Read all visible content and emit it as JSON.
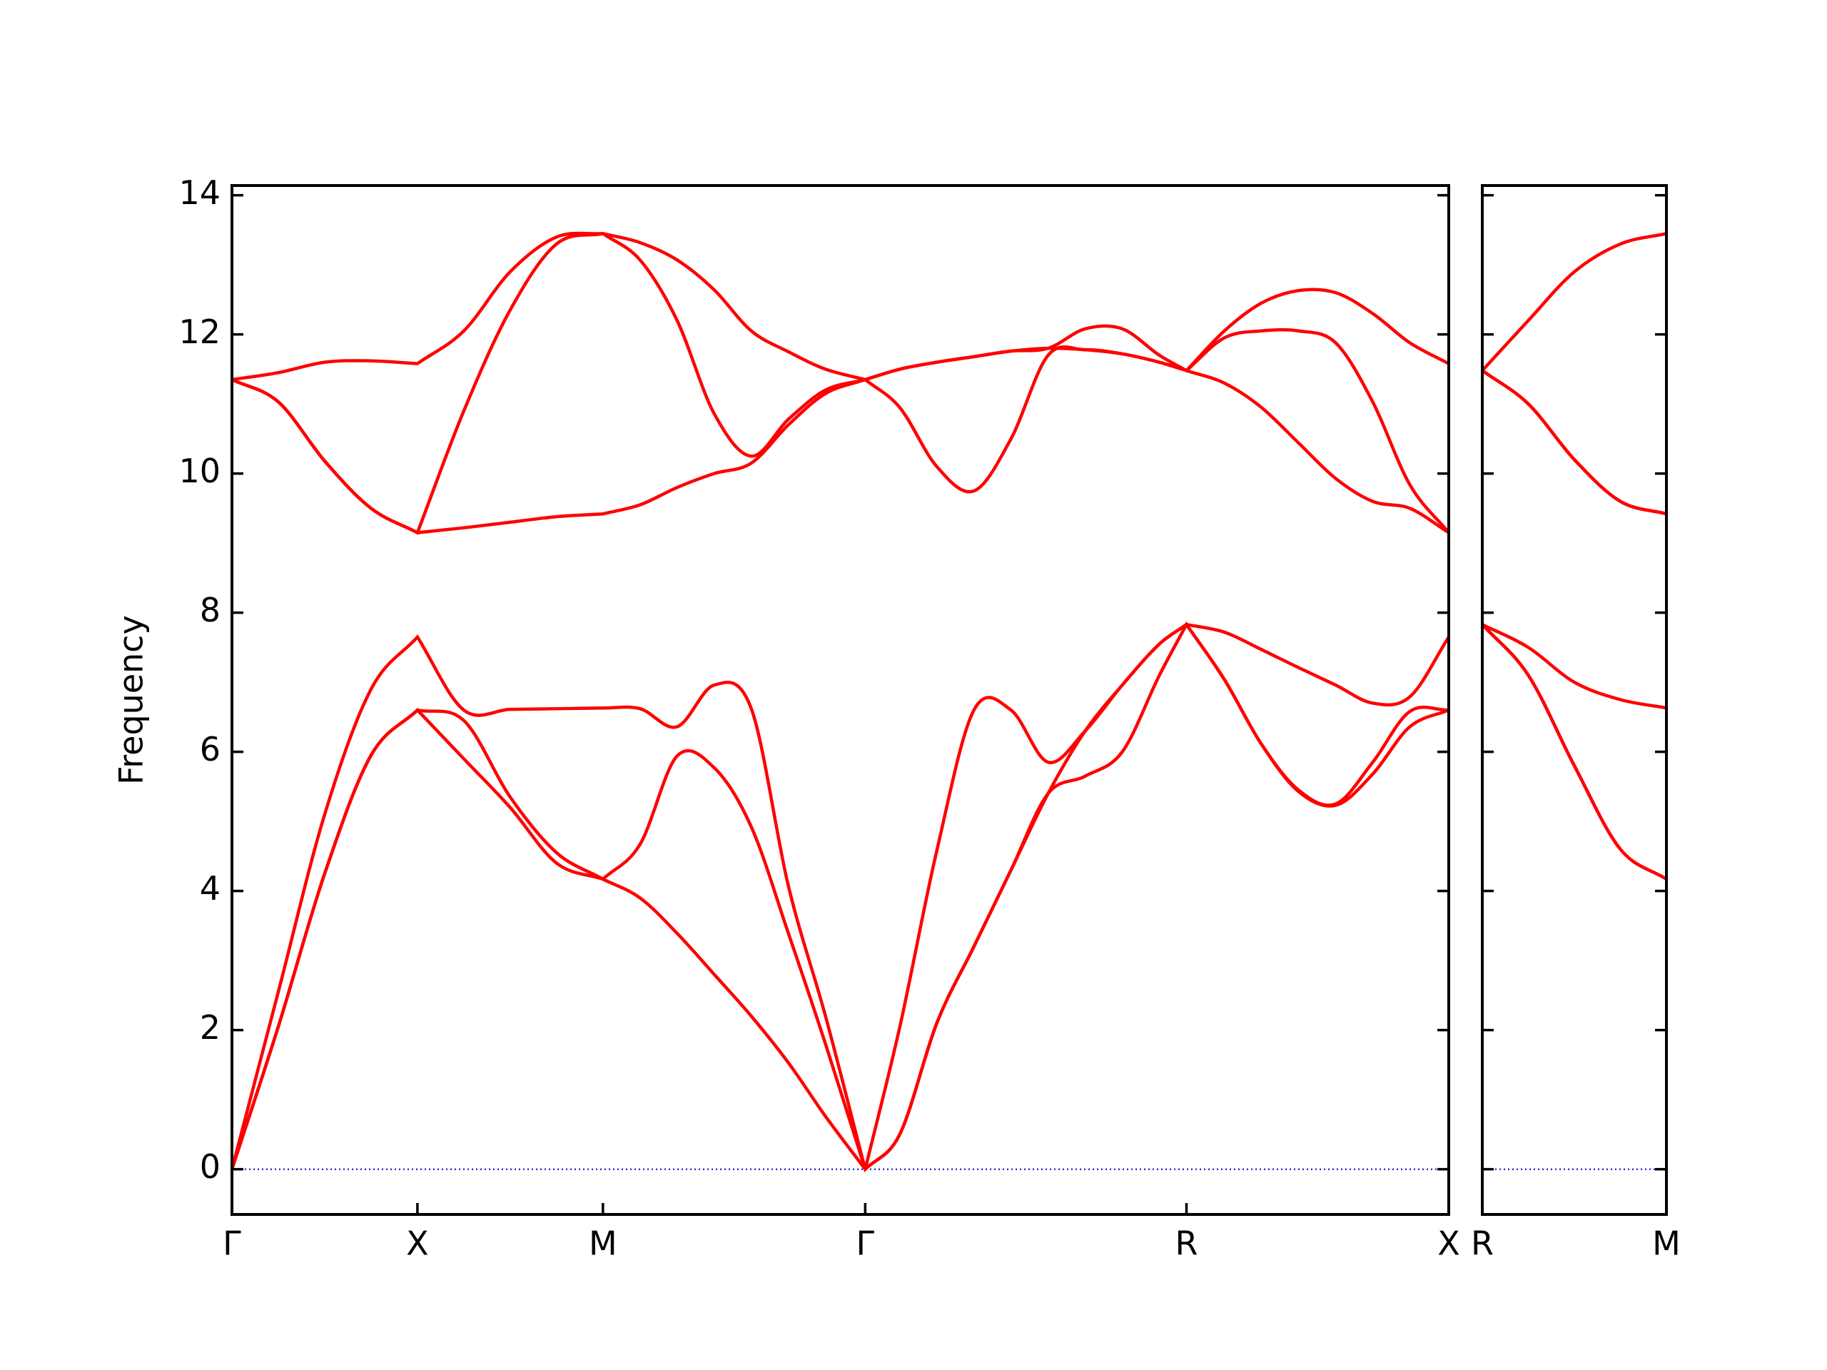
{
  "chart_data": [
    {
      "type": "line",
      "ylabel": "Frequency",
      "x": [
        0,
        0.25,
        0.5,
        0.75,
        1,
        1.25,
        1.5,
        1.75,
        2,
        2.2,
        2.4,
        2.6,
        2.8,
        3.0,
        3.2,
        3.414,
        3.6,
        3.8,
        4.0,
        4.2,
        4.4,
        4.6,
        4.8,
        5.0,
        5.146,
        5.35,
        5.55,
        5.75,
        5.95,
        6.15,
        6.35,
        6.56
      ],
      "xlim": [
        0,
        6.56
      ],
      "xticks": [
        {
          "value": 0,
          "label": "Γ"
        },
        {
          "value": 1,
          "label": "X"
        },
        {
          "value": 2,
          "label": "M"
        },
        {
          "value": 3.414,
          "label": "Γ"
        },
        {
          "value": 5.146,
          "label": "R"
        },
        {
          "value": 6.56,
          "label": "X"
        }
      ],
      "ylim": [
        -0.65,
        14.14
      ],
      "yticks": [
        0,
        2,
        4,
        6,
        8,
        10,
        12,
        14
      ],
      "ytick_labels": true,
      "hlines": [
        {
          "value": 0,
          "color": "#0000cd"
        }
      ],
      "series": [
        {
          "color": "#ff0000",
          "values": [
            0,
            2.05,
            4.25,
            5.95,
            6.6,
            5.9,
            5.2,
            4.4,
            4.17,
            3.9,
            3.39,
            2.8,
            2.2,
            1.53,
            0.76,
            0,
            0.5,
            2.1,
            3.2,
            4.3,
            5.4,
            5.65,
            6.0,
            7.1,
            7.83,
            7.04,
            6.11,
            5.43,
            5.23,
            5.68,
            6.36,
            6.6
          ]
        },
        {
          "color": "#ff0000",
          "values": [
            0,
            2.05,
            4.25,
            5.95,
            6.6,
            6.45,
            5.35,
            4.55,
            4.17,
            4.67,
            5.94,
            5.77,
            4.92,
            3.39,
            1.8,
            0,
            0.5,
            2.1,
            3.2,
            4.3,
            5.4,
            6.3,
            6.96,
            7.55,
            7.83,
            7.04,
            6.11,
            5.45,
            5.25,
            5.85,
            6.58,
            6.6
          ]
        },
        {
          "color": "#ff0000",
          "values": [
            0,
            2.55,
            5.1,
            6.9,
            7.65,
            6.6,
            6.61,
            6.62,
            6.63,
            6.62,
            6.36,
            6.96,
            6.62,
            4.07,
            2.2,
            0,
            2.04,
            4.58,
            6.6,
            6.6,
            5.85,
            6.3,
            6.96,
            7.55,
            7.83,
            7.72,
            7.47,
            7.21,
            6.96,
            6.7,
            6.79,
            7.65
          ]
        },
        {
          "color": "#ff0000",
          "values": [
            11.35,
            11.03,
            10.18,
            9.5,
            9.15,
            9.22,
            9.3,
            9.38,
            9.42,
            9.55,
            9.8,
            10.0,
            10.15,
            10.7,
            11.15,
            11.35,
            10.95,
            10.1,
            9.75,
            10.5,
            11.7,
            11.78,
            11.72,
            11.6,
            11.48,
            11.3,
            10.95,
            10.44,
            9.93,
            9.6,
            9.5,
            9.15
          ]
        },
        {
          "color": "#ff0000",
          "values": [
            11.35,
            11.03,
            10.18,
            9.5,
            9.15,
            10.9,
            12.35,
            13.3,
            13.45,
            13.07,
            12.2,
            10.86,
            10.25,
            10.78,
            11.2,
            11.35,
            11.5,
            11.6,
            11.68,
            11.76,
            11.8,
            11.78,
            11.72,
            11.6,
            11.48,
            11.95,
            12.05,
            12.05,
            11.88,
            11.03,
            9.84,
            9.15
          ]
        },
        {
          "color": "#ff0000",
          "values": [
            11.35,
            11.45,
            11.6,
            11.62,
            11.58,
            12.05,
            12.9,
            13.4,
            13.45,
            13.32,
            13.07,
            12.64,
            12.05,
            11.75,
            11.5,
            11.35,
            11.5,
            11.6,
            11.68,
            11.76,
            11.8,
            12.08,
            12.08,
            11.7,
            11.48,
            12.05,
            12.45,
            12.63,
            12.6,
            12.3,
            11.88,
            11.58
          ]
        }
      ]
    },
    {
      "type": "line",
      "x": [
        0,
        0.25,
        0.5,
        0.75,
        1
      ],
      "xlim": [
        0,
        1
      ],
      "xticks": [
        {
          "value": 0,
          "label": "R"
        },
        {
          "value": 1,
          "label": "M"
        }
      ],
      "ylim": [
        -0.65,
        14.14
      ],
      "yticks": [
        0,
        2,
        4,
        6,
        8,
        10,
        12,
        14
      ],
      "ytick_labels": false,
      "hlines": [
        {
          "value": 0,
          "color": "#0000cd"
        }
      ],
      "series": [
        {
          "color": "#ff0000",
          "values": [
            7.83,
            7.1,
            5.8,
            4.6,
            4.17
          ]
        },
        {
          "color": "#ff0000",
          "values": [
            7.83,
            7.1,
            5.8,
            4.6,
            4.17
          ]
        },
        {
          "color": "#ff0000",
          "values": [
            7.83,
            7.5,
            7.0,
            6.75,
            6.63
          ]
        },
        {
          "color": "#ff0000",
          "values": [
            11.48,
            11.0,
            10.2,
            9.6,
            9.42
          ]
        },
        {
          "color": "#ff0000",
          "values": [
            11.48,
            11.0,
            10.2,
            9.6,
            9.42
          ]
        },
        {
          "color": "#ff0000",
          "values": [
            11.48,
            12.2,
            12.9,
            13.3,
            13.45
          ]
        }
      ]
    }
  ]
}
